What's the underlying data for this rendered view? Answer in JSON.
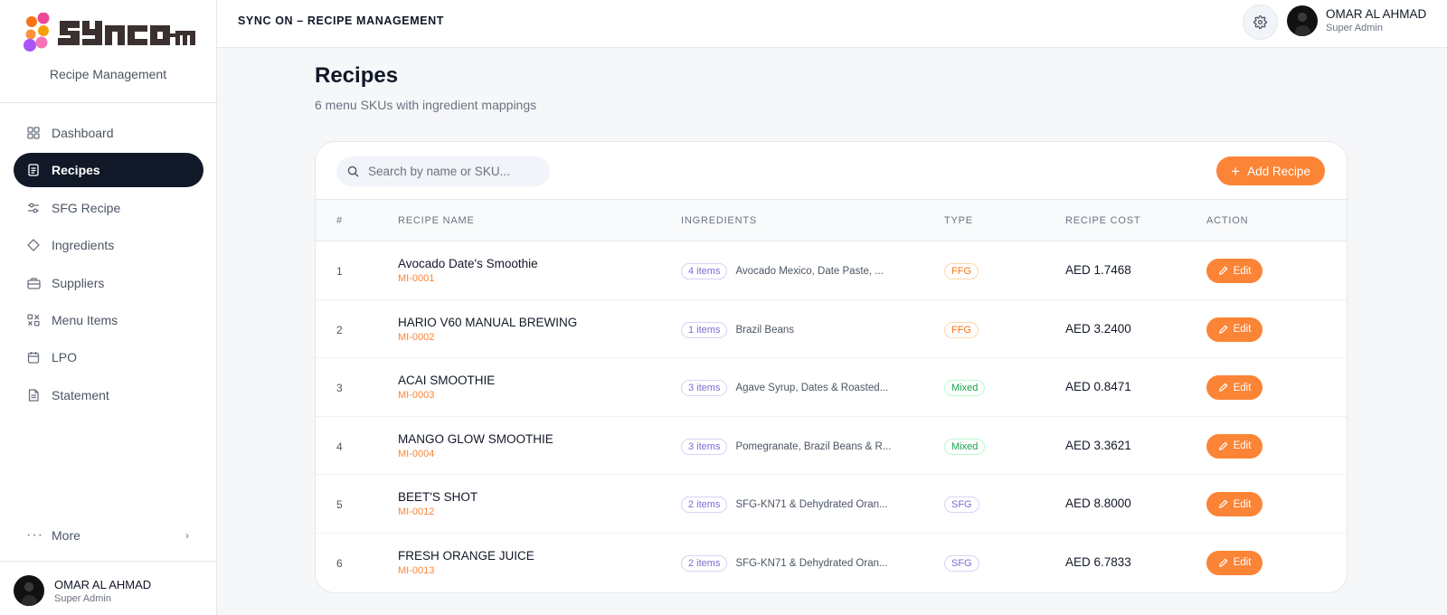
{
  "brand": {
    "subtitle": "Recipe Management"
  },
  "sidebar": {
    "items": [
      {
        "label": "Dashboard",
        "icon": "grid-icon",
        "active": false
      },
      {
        "label": "Recipes",
        "icon": "document-icon",
        "active": true
      },
      {
        "label": "SFG Recipe",
        "icon": "sliders-icon",
        "active": false
      },
      {
        "label": "Ingredients",
        "icon": "diamond-icon",
        "active": false
      },
      {
        "label": "Suppliers",
        "icon": "briefcase-icon",
        "active": false
      },
      {
        "label": "Menu Items",
        "icon": "menu-grid-icon",
        "active": false
      },
      {
        "label": "LPO",
        "icon": "calendar-icon",
        "active": false
      },
      {
        "label": "Statement",
        "icon": "file-text-icon",
        "active": false
      }
    ],
    "more_label": "More",
    "user": {
      "name": "OMAR AL AHMAD",
      "role": "Super Admin"
    }
  },
  "header": {
    "title": "SYNC ON – RECIPE MANAGEMENT",
    "user": {
      "name": "OMAR AL AHMAD",
      "role": "Super Admin"
    }
  },
  "main": {
    "title": "Recipes",
    "subtitle": "6 menu SKUs with ingredient mappings",
    "search": {
      "placeholder": "Search by name or SKU...",
      "value": ""
    },
    "add_label": "Add Recipe",
    "columns": [
      "#",
      "RECIPE NAME",
      "INGREDIENTS",
      "TYPE",
      "RECIPE COST",
      "ACTION"
    ],
    "rows": [
      {
        "num": "1",
        "name": "Avocado Date's Smoothie",
        "sku": "MI-0001",
        "items": "4 items",
        "ingredients": "Avocado Mexico, Date Paste, ...",
        "type": "FFG",
        "cost": "AED 1.7468",
        "action": "Edit"
      },
      {
        "num": "2",
        "name": "HARIO V60 MANUAL BREWING",
        "sku": "MI-0002",
        "items": "1 items",
        "ingredients": "Brazil Beans",
        "type": "FFG",
        "cost": "AED 3.2400",
        "action": "Edit"
      },
      {
        "num": "3",
        "name": "ACAI SMOOTHIE",
        "sku": "MI-0003",
        "items": "3 items",
        "ingredients": "Agave Syrup, Dates & Roasted...",
        "type": "Mixed",
        "cost": "AED 0.8471",
        "action": "Edit"
      },
      {
        "num": "4",
        "name": "MANGO GLOW SMOOTHIE",
        "sku": "MI-0004",
        "items": "3 items",
        "ingredients": "Pomegranate, Brazil Beans & R...",
        "type": "Mixed",
        "cost": "AED 3.3621",
        "action": "Edit"
      },
      {
        "num": "5",
        "name": "BEET'S SHOT",
        "sku": "MI-0012",
        "items": "2 items",
        "ingredients": "SFG-KN71 & Dehydrated Oran...",
        "type": "SFG",
        "cost": "AED 8.8000",
        "action": "Edit"
      },
      {
        "num": "6",
        "name": "FRESH ORANGE JUICE",
        "sku": "MI-0013",
        "items": "2 items",
        "ingredients": "SFG-KN71 & Dehydrated Oran...",
        "type": "SFG",
        "cost": "AED 6.7833",
        "action": "Edit"
      }
    ]
  },
  "colors": {
    "accent": "#fb8436",
    "active_nav": "#111827",
    "type_ffg": "#f97316",
    "type_mixed": "#16a34a",
    "type_sfg": "#7c6cd6"
  }
}
